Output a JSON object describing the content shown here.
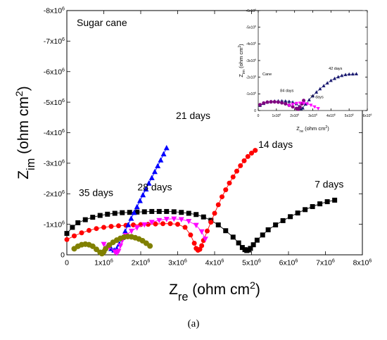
{
  "caption": "(a)",
  "colors": {
    "black": "#000000",
    "red": "#ff0000",
    "blue": "#0000ff",
    "magenta": "#ff00ff",
    "olive": "#808000",
    "navy": "#191970",
    "purple": "#800080"
  },
  "chart_data": [
    {
      "type": "scatter",
      "title": "Sugar cane",
      "xlabel": "Z_re (ohm cm^2)",
      "ylabel": "Z_im (ohm cm^2)",
      "xlim": [
        0,
        8000000
      ],
      "ylim": [
        0,
        -8000000
      ],
      "x_ticks": [
        {
          "v": 0,
          "m": "0",
          "e": ""
        },
        {
          "v": 1000000,
          "m": "1x10",
          "e": "6"
        },
        {
          "v": 2000000,
          "m": "2x10",
          "e": "6"
        },
        {
          "v": 3000000,
          "m": "3x10",
          "e": "6"
        },
        {
          "v": 4000000,
          "m": "4x10",
          "e": "6"
        },
        {
          "v": 5000000,
          "m": "5x10",
          "e": "6"
        },
        {
          "v": 6000000,
          "m": "6x10",
          "e": "6"
        },
        {
          "v": 7000000,
          "m": "7x10",
          "e": "6"
        },
        {
          "v": 8000000,
          "m": "8x10",
          "e": "6"
        }
      ],
      "y_ticks": [
        {
          "v": 0,
          "m": "0",
          "e": ""
        },
        {
          "v": -1000000,
          "m": "-1x10",
          "e": "6"
        },
        {
          "v": -2000000,
          "m": "-2x10",
          "e": "6"
        },
        {
          "v": -3000000,
          "m": "-3x10",
          "e": "6"
        },
        {
          "v": -4000000,
          "m": "-4x10",
          "e": "6"
        },
        {
          "v": -5000000,
          "m": "-5x10",
          "e": "6"
        },
        {
          "v": -6000000,
          "m": "-6x10",
          "e": "6"
        },
        {
          "v": -7000000,
          "m": "-7x10",
          "e": "6"
        },
        {
          "v": -8000000,
          "m": "-8x10",
          "e": "6"
        }
      ],
      "annotations": [
        {
          "text": "7 days",
          "x": 7100000,
          "y": -2200000
        },
        {
          "text": "14 days",
          "x": 5650000,
          "y": -3500000
        },
        {
          "text": "21 days",
          "x": 3420000,
          "y": -4450000
        },
        {
          "text": "28 days",
          "x": 2380000,
          "y": -2110000
        },
        {
          "text": "35 days",
          "x": 790000,
          "y": -1930000
        }
      ],
      "series": [
        {
          "name": "7 days",
          "color": "#000000",
          "marker": "square",
          "size": 7,
          "x": [
            0,
            150000,
            300000,
            500000,
            700000,
            900000,
            1100000,
            1300000,
            1500000,
            1700000,
            1900000,
            2100000,
            2300000,
            2500000,
            2700000,
            2900000,
            3100000,
            3300000,
            3500000,
            3700000,
            3900000,
            4100000,
            4300000,
            4500000,
            4650000,
            4750000,
            4820000,
            4870000,
            4920000,
            4970000,
            5050000,
            5150000,
            5300000,
            5450000,
            5650000,
            5850000,
            6050000,
            6250000,
            6450000,
            6650000,
            6850000,
            7050000,
            7250000
          ],
          "y": [
            -700000,
            -900000,
            -1050000,
            -1150000,
            -1230000,
            -1290000,
            -1330000,
            -1360000,
            -1380000,
            -1390000,
            -1400000,
            -1410000,
            -1420000,
            -1420000,
            -1420000,
            -1410000,
            -1390000,
            -1360000,
            -1320000,
            -1240000,
            -1130000,
            -980000,
            -790000,
            -580000,
            -390000,
            -240000,
            -170000,
            -140000,
            -160000,
            -210000,
            -330000,
            -480000,
            -650000,
            -820000,
            -980000,
            -1120000,
            -1250000,
            -1370000,
            -1480000,
            -1580000,
            -1670000,
            -1740000,
            -1790000
          ]
        },
        {
          "name": "14 days",
          "color": "#ff0000",
          "marker": "circle",
          "size": 7,
          "x": [
            0,
            200000,
            400000,
            600000,
            800000,
            1000000,
            1200000,
            1400000,
            1600000,
            1800000,
            2000000,
            2200000,
            2400000,
            2600000,
            2800000,
            3000000,
            3200000,
            3350000,
            3450000,
            3500000,
            3550000,
            3600000,
            3650000,
            3700000,
            3800000,
            3900000,
            4000000,
            4100000,
            4200000,
            4300000,
            4400000,
            4500000,
            4600000,
            4700000,
            4800000,
            4900000,
            5000000,
            5100000
          ],
          "y": [
            -500000,
            -620000,
            -720000,
            -800000,
            -860000,
            -900000,
            -930000,
            -950000,
            -965000,
            -980000,
            -990000,
            -1000000,
            -1010000,
            -1020000,
            -1020000,
            -1000000,
            -900000,
            -650000,
            -380000,
            -210000,
            -150000,
            -180000,
            -300000,
            -470000,
            -780000,
            -1070000,
            -1360000,
            -1640000,
            -1900000,
            -2130000,
            -2350000,
            -2550000,
            -2740000,
            -2920000,
            -3080000,
            -3220000,
            -3330000,
            -3420000
          ]
        },
        {
          "name": "21 days",
          "color": "#0000ff",
          "marker": "triangle-up",
          "size": 8,
          "x": [
            1100000,
            1200000,
            1280000,
            1350000,
            1420000,
            1500000,
            1580000,
            1660000,
            1740000,
            1820000,
            1900000,
            1980000,
            2060000,
            2140000,
            2220000,
            2300000,
            2380000,
            2460000,
            2540000,
            2620000,
            2700000
          ],
          "y": [
            -300000,
            -200000,
            -150000,
            -200000,
            -350000,
            -560000,
            -770000,
            -980000,
            -1190000,
            -1380000,
            -1570000,
            -1770000,
            -1960000,
            -2150000,
            -2340000,
            -2520000,
            -2720000,
            -2910000,
            -3100000,
            -3300000,
            -3500000
          ]
        },
        {
          "name": "28 days",
          "color": "#ff00ff",
          "marker": "triangle-down",
          "size": 8,
          "x": [
            1000000,
            1150000,
            1300000,
            1350000,
            1400000,
            1450000,
            1500000,
            1600000,
            1750000,
            1900000,
            2100000,
            2300000,
            2500000,
            2700000,
            2900000,
            3100000,
            3300000,
            3500000,
            3650000,
            3750000
          ],
          "y": [
            -350000,
            -250000,
            -100000,
            -60000,
            -120000,
            -300000,
            -470000,
            -640000,
            -780000,
            -890000,
            -990000,
            -1070000,
            -1130000,
            -1170000,
            -1180000,
            -1160000,
            -1100000,
            -970000,
            -760000,
            -520000
          ]
        },
        {
          "name": "35 days",
          "color": "#808000",
          "marker": "circle",
          "size": 8,
          "x": [
            200000,
            300000,
            400000,
            500000,
            600000,
            700000,
            800000,
            900000,
            950000,
            1000000,
            1050000,
            1150000,
            1250000,
            1350000,
            1450000,
            1550000,
            1650000,
            1750000,
            1850000,
            1950000,
            2050000,
            2150000,
            2250000
          ],
          "y": [
            -200000,
            -280000,
            -330000,
            -350000,
            -330000,
            -280000,
            -180000,
            -80000,
            -40000,
            -100000,
            -200000,
            -320000,
            -410000,
            -480000,
            -540000,
            -580000,
            -600000,
            -590000,
            -560000,
            -520000,
            -460000,
            -380000,
            -290000
          ]
        }
      ]
    },
    {
      "type": "scatter",
      "title": "Cane",
      "xlabel": "Z_re (ohm cm^2)",
      "ylabel": "Z_im (ohm cm^2)",
      "xlim": [
        0,
        6000000
      ],
      "ylim": [
        0,
        -6000000
      ],
      "x_ticks": [
        {
          "v": 0,
          "m": "0",
          "e": ""
        },
        {
          "v": 1000000,
          "m": "1x10",
          "e": "6"
        },
        {
          "v": 2000000,
          "m": "2x10",
          "e": "6"
        },
        {
          "v": 3000000,
          "m": "3x10",
          "e": "6"
        },
        {
          "v": 4000000,
          "m": "4x10",
          "e": "6"
        },
        {
          "v": 5000000,
          "m": "5x10",
          "e": "6"
        },
        {
          "v": 6000000,
          "m": "6x10",
          "e": "6"
        }
      ],
      "y_ticks": [
        {
          "v": 0,
          "m": "0",
          "e": ""
        },
        {
          "v": -1000000,
          "m": "-1x10",
          "e": "6"
        },
        {
          "v": -2000000,
          "m": "-2x10",
          "e": "6"
        },
        {
          "v": -3000000,
          "m": "-3x10",
          "e": "6"
        },
        {
          "v": -4000000,
          "m": "-4x10",
          "e": "6"
        },
        {
          "v": -5000000,
          "m": "-5x10",
          "e": "6"
        },
        {
          "v": -6000000,
          "m": "-6x10",
          "e": "6"
        }
      ],
      "annotations": [
        {
          "text": "42 days",
          "x": 4250000,
          "y": -2450000
        },
        {
          "text": "84 days",
          "x": 1580000,
          "y": -1120000
        },
        {
          "text": "77 days",
          "x": 3220000,
          "y": -740000
        }
      ],
      "series": [
        {
          "name": "42 days",
          "color": "#191970",
          "marker": "triangle-up",
          "size": 5,
          "x": [
            100000,
            300000,
            500000,
            700000,
            900000,
            1100000,
            1300000,
            1500000,
            1700000,
            1900000,
            2100000,
            2250000,
            2350000,
            2450000,
            2600000,
            2800000,
            3000000,
            3200000,
            3400000,
            3600000,
            3800000,
            4000000,
            4200000,
            4400000,
            4600000,
            4800000,
            5000000,
            5200000,
            5400000
          ],
          "y": [
            -300000,
            -420000,
            -500000,
            -540000,
            -560000,
            -570000,
            -570000,
            -560000,
            -540000,
            -500000,
            -400000,
            -250000,
            -100000,
            -150000,
            -380000,
            -640000,
            -880000,
            -1100000,
            -1300000,
            -1480000,
            -1650000,
            -1800000,
            -1920000,
            -2020000,
            -2100000,
            -2150000,
            -2180000,
            -2190000,
            -2200000
          ]
        },
        {
          "name": "84 days",
          "color": "#800080",
          "marker": "circle",
          "size": 5,
          "x": [
            100000,
            300000,
            500000,
            700000,
            900000,
            1100000,
            1300000,
            1500000,
            1700000,
            1900000,
            2100000,
            2200000,
            2300000,
            2400000,
            2500000
          ],
          "y": [
            -350000,
            -450000,
            -500000,
            -520000,
            -520000,
            -500000,
            -460000,
            -400000,
            -320000,
            -220000,
            -120000,
            -80000,
            -200000,
            -400000,
            -600000
          ]
        },
        {
          "name": "77 days",
          "color": "#ff00ff",
          "marker": "triangle-down",
          "size": 5,
          "x": [
            1700000,
            1900000,
            2100000,
            2300000,
            2500000,
            2700000,
            2900000,
            3100000,
            3300000
          ],
          "y": [
            -300000,
            -380000,
            -430000,
            -450000,
            -440000,
            -400000,
            -320000,
            -220000,
            -120000
          ]
        }
      ]
    }
  ]
}
